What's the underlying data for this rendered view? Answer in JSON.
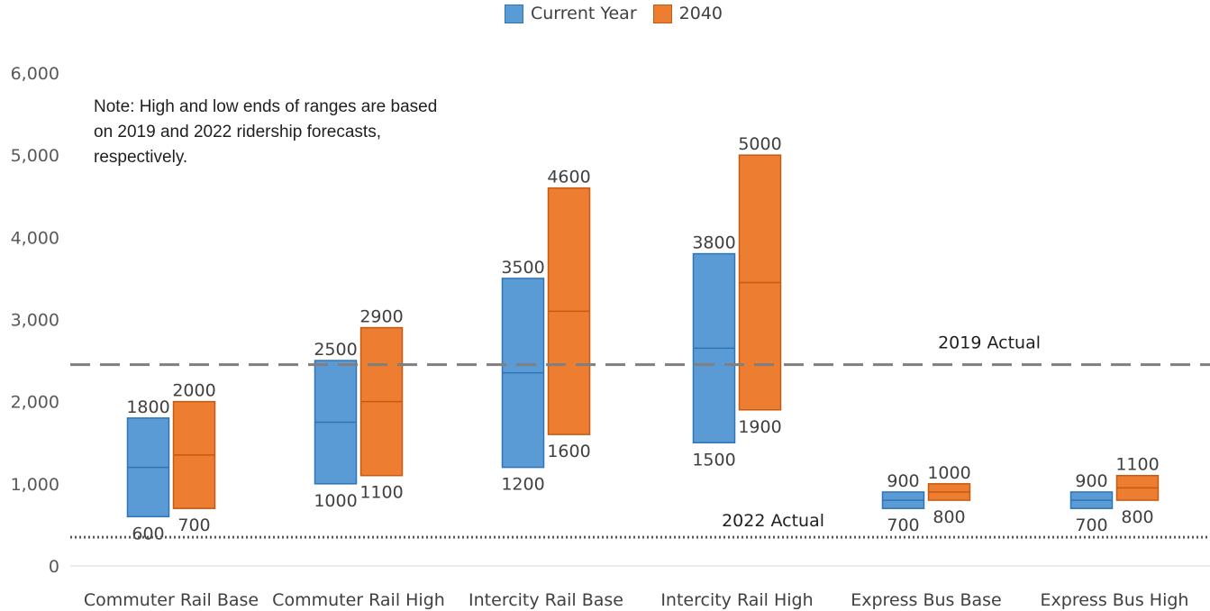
{
  "chart_data": {
    "type": "floating-bar",
    "categories": [
      "Commuter Rail Base",
      "Commuter Rail High",
      "Intercity Rail Base",
      "Intercity Rail High",
      "Express Bus Base",
      "Express Bus High"
    ],
    "series": [
      {
        "name": "Current Year",
        "color": "#5b9bd5",
        "border": "#2e75b6",
        "low": [
          600,
          1000,
          1200,
          1500,
          700,
          700
        ],
        "high": [
          1800,
          2500,
          3500,
          3800,
          900,
          900
        ],
        "low_labels": [
          "600",
          "1000",
          "1200",
          "1500",
          "700",
          "700"
        ],
        "high_labels": [
          "1800",
          "2500",
          "3500",
          "3800",
          "900",
          "900"
        ]
      },
      {
        "name": "2040",
        "color": "#ed7d31",
        "border": "#c55a11",
        "low": [
          700,
          1100,
          1600,
          1900,
          800,
          800
        ],
        "high": [
          2000,
          2900,
          4600,
          5000,
          1000,
          1100
        ],
        "low_labels": [
          "700",
          "1100",
          "1600",
          "1900",
          "800",
          "800"
        ],
        "high_labels": [
          "2000",
          "2900",
          "4600",
          "5000",
          "1000",
          "1100"
        ]
      }
    ],
    "ylim": [
      0,
      6000
    ],
    "yticks": [
      0,
      1000,
      2000,
      3000,
      4000,
      5000,
      6000
    ],
    "ytick_labels": [
      "0",
      "1,000",
      "2,000",
      "3,000",
      "4,000",
      "5,000",
      "6,000"
    ],
    "reference_lines": [
      {
        "label": "2019 Actual",
        "value": 2450,
        "style": "dashed",
        "color": "#7f7f7f"
      },
      {
        "label": "2022 Actual",
        "value": 350,
        "style": "dotted",
        "color": "#595959"
      }
    ],
    "note": "Note: High and low ends of ranges are based on 2019 and 2022 ridership forecasts, respectively.",
    "legend_position": "top-center",
    "grid": false
  }
}
